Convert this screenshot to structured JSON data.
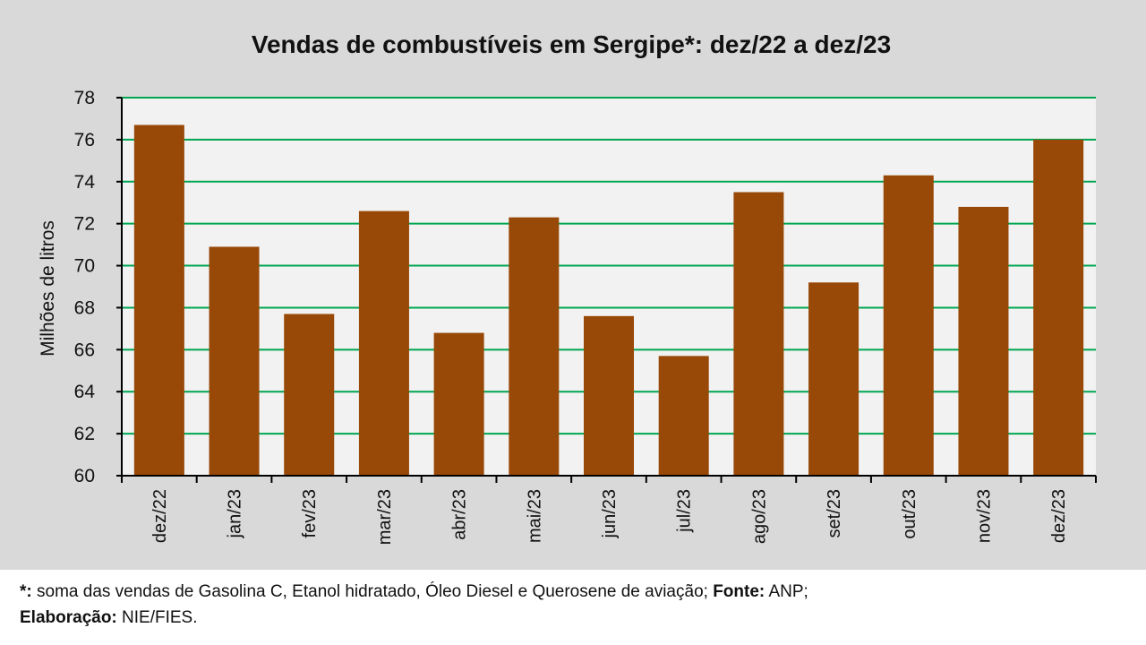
{
  "chart_data": {
    "type": "bar",
    "title": "Vendas de combustíveis em Sergipe*: dez/22 a dez/23",
    "xlabel": "",
    "ylabel": "Milhões de litros",
    "ylim": [
      60,
      78
    ],
    "yticks": [
      60,
      62,
      64,
      66,
      68,
      70,
      72,
      74,
      76,
      78
    ],
    "grid": true,
    "categories": [
      "dez/22",
      "jan/23",
      "fev/23",
      "mar/23",
      "abr/23",
      "mai/23",
      "jun/23",
      "jul/23",
      "ago/23",
      "set/23",
      "out/23",
      "nov/23",
      "dez/23"
    ],
    "values": [
      76.7,
      70.9,
      67.7,
      72.6,
      66.8,
      72.3,
      67.6,
      65.7,
      73.5,
      69.2,
      74.3,
      72.8,
      76.0
    ],
    "colors": {
      "bar": "#984807",
      "grid": "#00a651",
      "plot_bg": "#f2f2f2",
      "axis": "#000000"
    }
  },
  "footnote": {
    "line1_marker": "*:",
    "line1_text": " soma das vendas de Gasolina C, Etanol hidratado, Óleo Diesel e Querosene de aviação; ",
    "line1_source_label": "Fonte:",
    "line1_source_value": " ANP;",
    "line2_label": "Elaboração:",
    "line2_value": " NIE/FIES."
  }
}
